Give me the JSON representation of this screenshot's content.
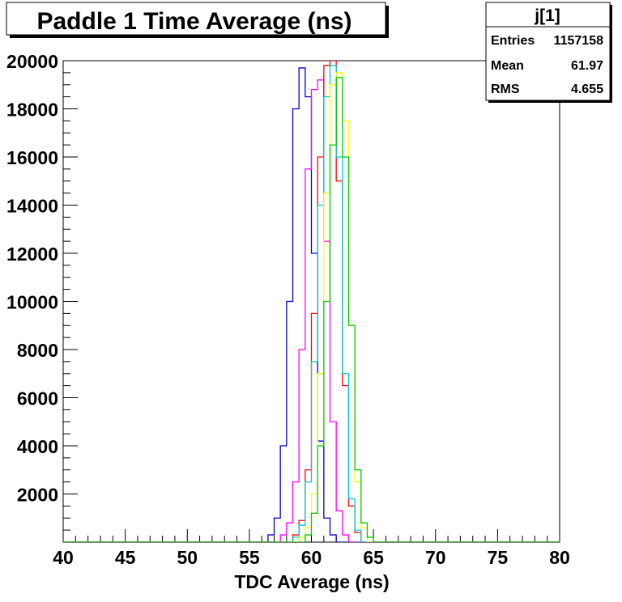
{
  "chart_data": {
    "type": "histogram",
    "title": "Paddle 1 Time Average (ns)",
    "xlabel": "TDC Average (ns)",
    "ylabel": "",
    "xlim": [
      40,
      80
    ],
    "ylim": [
      0,
      20000
    ],
    "bin_width": 0.5,
    "x_ticks": [
      "40",
      "45",
      "50",
      "55",
      "60",
      "65",
      "70",
      "75",
      "80"
    ],
    "y_ticks": [
      "2000",
      "4000",
      "6000",
      "8000",
      "10000",
      "12000",
      "14000",
      "16000",
      "18000",
      "20000"
    ],
    "stats_box": {
      "title": "j[1]",
      "rows": [
        {
          "label": "Entries",
          "value": "1157158"
        },
        {
          "label": "Mean",
          "value": "61.97"
        },
        {
          "label": "RMS",
          "value": "4.655"
        }
      ]
    },
    "series": [
      {
        "color": "#0000cc",
        "bins": [
          [
            56.5,
            300
          ],
          [
            57,
            1000
          ],
          [
            57.5,
            4000
          ],
          [
            58,
            10000
          ],
          [
            58.5,
            18000
          ],
          [
            59,
            19700
          ],
          [
            59.5,
            18500
          ],
          [
            60,
            12000
          ],
          [
            60.5,
            4200
          ],
          [
            61,
            1000
          ],
          [
            61.5,
            300
          ]
        ]
      },
      {
        "color": "#ff00ff",
        "bins": [
          [
            57.5,
            300
          ],
          [
            58,
            800
          ],
          [
            58.5,
            2500
          ],
          [
            59,
            8000
          ],
          [
            59.5,
            15500
          ],
          [
            60,
            18800
          ],
          [
            60.5,
            19200
          ],
          [
            61,
            12500
          ],
          [
            61.5,
            5000
          ],
          [
            62,
            1300
          ],
          [
            62.5,
            300
          ]
        ]
      },
      {
        "color": "#ff0000",
        "bins": [
          [
            58.5,
            300
          ],
          [
            59,
            900
          ],
          [
            59.5,
            3000
          ],
          [
            60,
            9500
          ],
          [
            60.5,
            16000
          ],
          [
            61,
            19800
          ],
          [
            61.5,
            20000
          ],
          [
            62,
            15000
          ],
          [
            62.5,
            6500
          ],
          [
            63,
            1500
          ],
          [
            63.5,
            400
          ]
        ]
      },
      {
        "color": "#00cccc",
        "bins": [
          [
            58.5,
            200
          ],
          [
            59,
            700
          ],
          [
            59.5,
            2500
          ],
          [
            60,
            7500
          ],
          [
            60.5,
            14000
          ],
          [
            61,
            18500
          ],
          [
            61.5,
            19800
          ],
          [
            62,
            16000
          ],
          [
            62.5,
            7000
          ],
          [
            63,
            1800
          ],
          [
            63.5,
            500
          ]
        ]
      },
      {
        "color": "#ffff00",
        "bins": [
          [
            59,
            200
          ],
          [
            59.5,
            600
          ],
          [
            60,
            2000
          ],
          [
            60.5,
            7000
          ],
          [
            61,
            14500
          ],
          [
            61.5,
            19000
          ],
          [
            62,
            19500
          ],
          [
            62.5,
            17500
          ],
          [
            63,
            9000
          ],
          [
            63.5,
            2500
          ],
          [
            64,
            600
          ]
        ]
      },
      {
        "color": "#00cc00",
        "bins": [
          [
            59.5,
            300
          ],
          [
            60,
            1200
          ],
          [
            60.5,
            4000
          ],
          [
            61,
            10000
          ],
          [
            61.5,
            16500
          ],
          [
            62,
            19300
          ],
          [
            62.5,
            16000
          ],
          [
            63,
            9000
          ],
          [
            63.5,
            3000
          ],
          [
            64,
            800
          ],
          [
            64.5,
            200
          ]
        ]
      }
    ]
  }
}
